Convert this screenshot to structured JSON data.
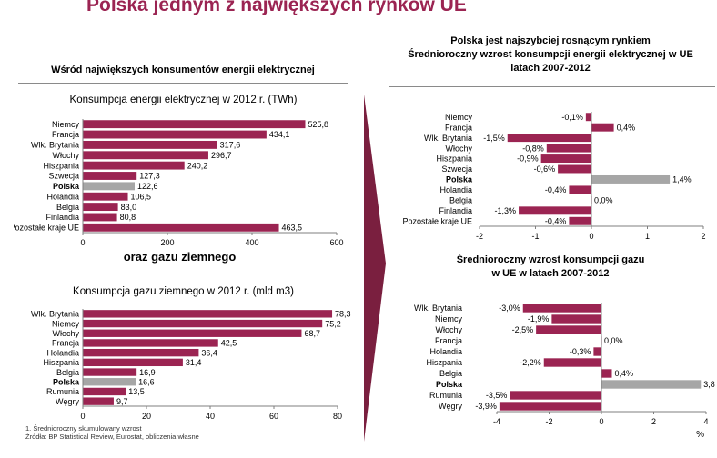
{
  "page": {
    "title": "Polska jednym z największych rynków UE",
    "left_heading": "Wśród największych konsumentów energii elektrycznej",
    "middle_heading": "oraz gazu ziemnego",
    "right_heading_lines": [
      "Polska jest najszybciej rosnącym rynkiem",
      "Średnioroczny wzrost konsumpcji energii elektrycznej w UE",
      "latach 2007-2012"
    ],
    "right_subheading_lines": [
      "Średnioroczny wzrost konsumpcji gazu",
      "w UE w latach 2007-2012"
    ],
    "footnotes": [
      "1. Średnioroczny skumulowany wzrost",
      "Źródła: BP Statistical Review, Eurostat, obliczenia własne"
    ],
    "colors": {
      "title": "#9b2452",
      "bar": "#9b2452",
      "highlight": "#a6a6a6",
      "arrow": "#7a1f3f"
    }
  },
  "chart_data": [
    {
      "id": "elec",
      "type": "bar",
      "orientation": "horizontal",
      "title": "Konsumpcja  energii elektrycznej  w 2012 r. (TWh)",
      "categories": [
        "Niemcy",
        "Francja",
        "Wlk. Brytania",
        "Włochy",
        "Hiszpania",
        "Szwecja",
        "Polska",
        "Holandia",
        "Belgia",
        "Finlandia",
        "Pozostałe kraje UE"
      ],
      "values": [
        525.8,
        434.1,
        317.6,
        296.7,
        240.2,
        127.3,
        122.6,
        106.5,
        83.0,
        80.8,
        463.5
      ],
      "value_labels": [
        "525,8",
        "434,1",
        "317,6",
        "296,7",
        "240,2",
        "127,3",
        "122,6",
        "106,5",
        "83,0",
        "80,8",
        "463,5"
      ],
      "highlight": "Polska",
      "xlim": [
        0,
        600
      ],
      "xticks": [
        0,
        200,
        400,
        600
      ],
      "xtick_labels": [
        "0",
        "200",
        "400",
        "600"
      ]
    },
    {
      "id": "gas",
      "type": "bar",
      "orientation": "horizontal",
      "title": "Konsumpcja  gazu ziemnego  w 2012 r. (mld m3)",
      "categories": [
        "Wlk. Brytania",
        "Niemcy",
        "Włochy",
        "Francja",
        "Holandia",
        "Hiszpania",
        "Belgia",
        "Polska",
        "Rumunia",
        "Węgry"
      ],
      "values": [
        78.3,
        75.2,
        68.7,
        42.5,
        36.4,
        31.4,
        16.9,
        16.6,
        13.5,
        9.7
      ],
      "value_labels": [
        "78,3",
        "75,2",
        "68,7",
        "42,5",
        "36,4",
        "31,4",
        "16,9",
        "16,6",
        "13,5",
        "9,7"
      ],
      "highlight": "Polska",
      "xlim": [
        0,
        80
      ],
      "xticks": [
        0,
        20,
        40,
        60,
        80
      ],
      "xtick_labels": [
        "0",
        "20",
        "40",
        "60",
        "80"
      ]
    },
    {
      "id": "elecgrowth",
      "type": "bar",
      "orientation": "horizontal",
      "categories": [
        "Niemcy",
        "Francja",
        "Wlk. Brytania",
        "Włochy",
        "Hiszpania",
        "Szwecja",
        "Polska",
        "Holandia",
        "Belgia",
        "Finlandia",
        "Pozostałe kraje UE"
      ],
      "values": [
        -0.1,
        0.4,
        -1.5,
        -0.8,
        -0.9,
        -0.6,
        1.4,
        -0.4,
        0.0,
        -1.3,
        -0.4
      ],
      "value_labels": [
        "-0,1%",
        "0,4%",
        "-1,5%",
        "-0,8%",
        "-0,9%",
        "-0,6%",
        "1,4%",
        "-0,4%",
        "0,0%",
        "-1,3%",
        "-0,4%"
      ],
      "highlight": "Polska",
      "xlim": [
        -2,
        2
      ],
      "xticks": [
        -2,
        -1,
        0,
        1,
        2
      ],
      "xtick_labels": [
        "-2",
        "-1",
        "0",
        "1",
        "2"
      ]
    },
    {
      "id": "gasgrowth",
      "type": "bar",
      "orientation": "horizontal",
      "categories": [
        "Wlk. Brytania",
        "Niemcy",
        "Włochy",
        "Francja",
        "Holandia",
        "Hiszpania",
        "Belgia",
        "Polska",
        "Rumunia",
        "Węgry"
      ],
      "values": [
        -3.0,
        -1.9,
        -2.5,
        0.0,
        -0.3,
        -2.2,
        0.4,
        3.8,
        -3.5,
        -3.9
      ],
      "value_labels": [
        "-3,0%",
        "-1,9%",
        "-2,5%",
        "0,0%",
        "-0,3%",
        "-2,2%",
        "0,4%",
        "3,8",
        "-3,5%",
        "-3,9%"
      ],
      "highlight": "Polska",
      "xlim": [
        -4,
        4
      ],
      "xticks": [
        -4,
        -2,
        0,
        2,
        4
      ],
      "xtick_labels": [
        "-4",
        "-2",
        "0",
        "2",
        "4"
      ],
      "xlabel": "%"
    }
  ]
}
